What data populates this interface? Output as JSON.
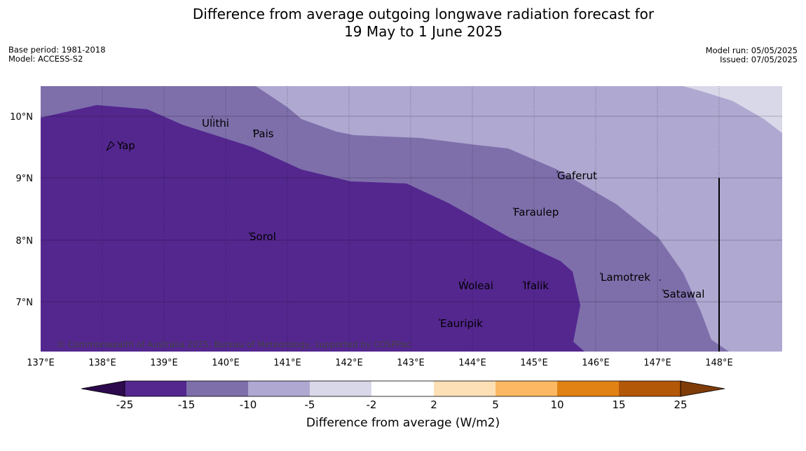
{
  "title_line1": "Difference from average outgoing longwave radiation forecast for",
  "title_line2": "19 May to 1 June 2025",
  "meta_left": {
    "base_period": "Base period: 1981-2018",
    "model": "Model: ACCESS-S2"
  },
  "meta_right": {
    "model_run": "Model run: 05/05/2025",
    "issued": "Issued: 07/05/2025"
  },
  "map": {
    "lon_labels": [
      "137°E",
      "138°E",
      "139°E",
      "140°E",
      "141°E",
      "142°E",
      "143°E",
      "144°E",
      "145°E",
      "146°E",
      "147°E",
      "148°E"
    ],
    "lat_labels": [
      "10°N",
      "9°N",
      "8°N",
      "7°N"
    ],
    "places": [
      "Yap",
      "Ulithi",
      "Pais",
      "Gaferut",
      "Faraulep",
      "Sorol",
      "Lamotrek",
      "Woleai",
      "Ifalik",
      "Satawal",
      "Eauripik"
    ],
    "copyright": "© Commonwealth of Australia 2025, Bureau of Meteorology, supported by COSPPac"
  },
  "colorbar": {
    "ticks": [
      "-25",
      "-15",
      "-10",
      "-5",
      "-2",
      "2",
      "5",
      "10",
      "15",
      "25"
    ],
    "colors": [
      "#2d0a4e",
      "#54278f",
      "#7e6fab",
      "#afa8d1",
      "#d8d8e9",
      "#ffffff",
      "#fee0b6",
      "#fdb863",
      "#e08214",
      "#b35806",
      "#7f3b08"
    ],
    "label": "Difference from average (W/m2)"
  }
}
